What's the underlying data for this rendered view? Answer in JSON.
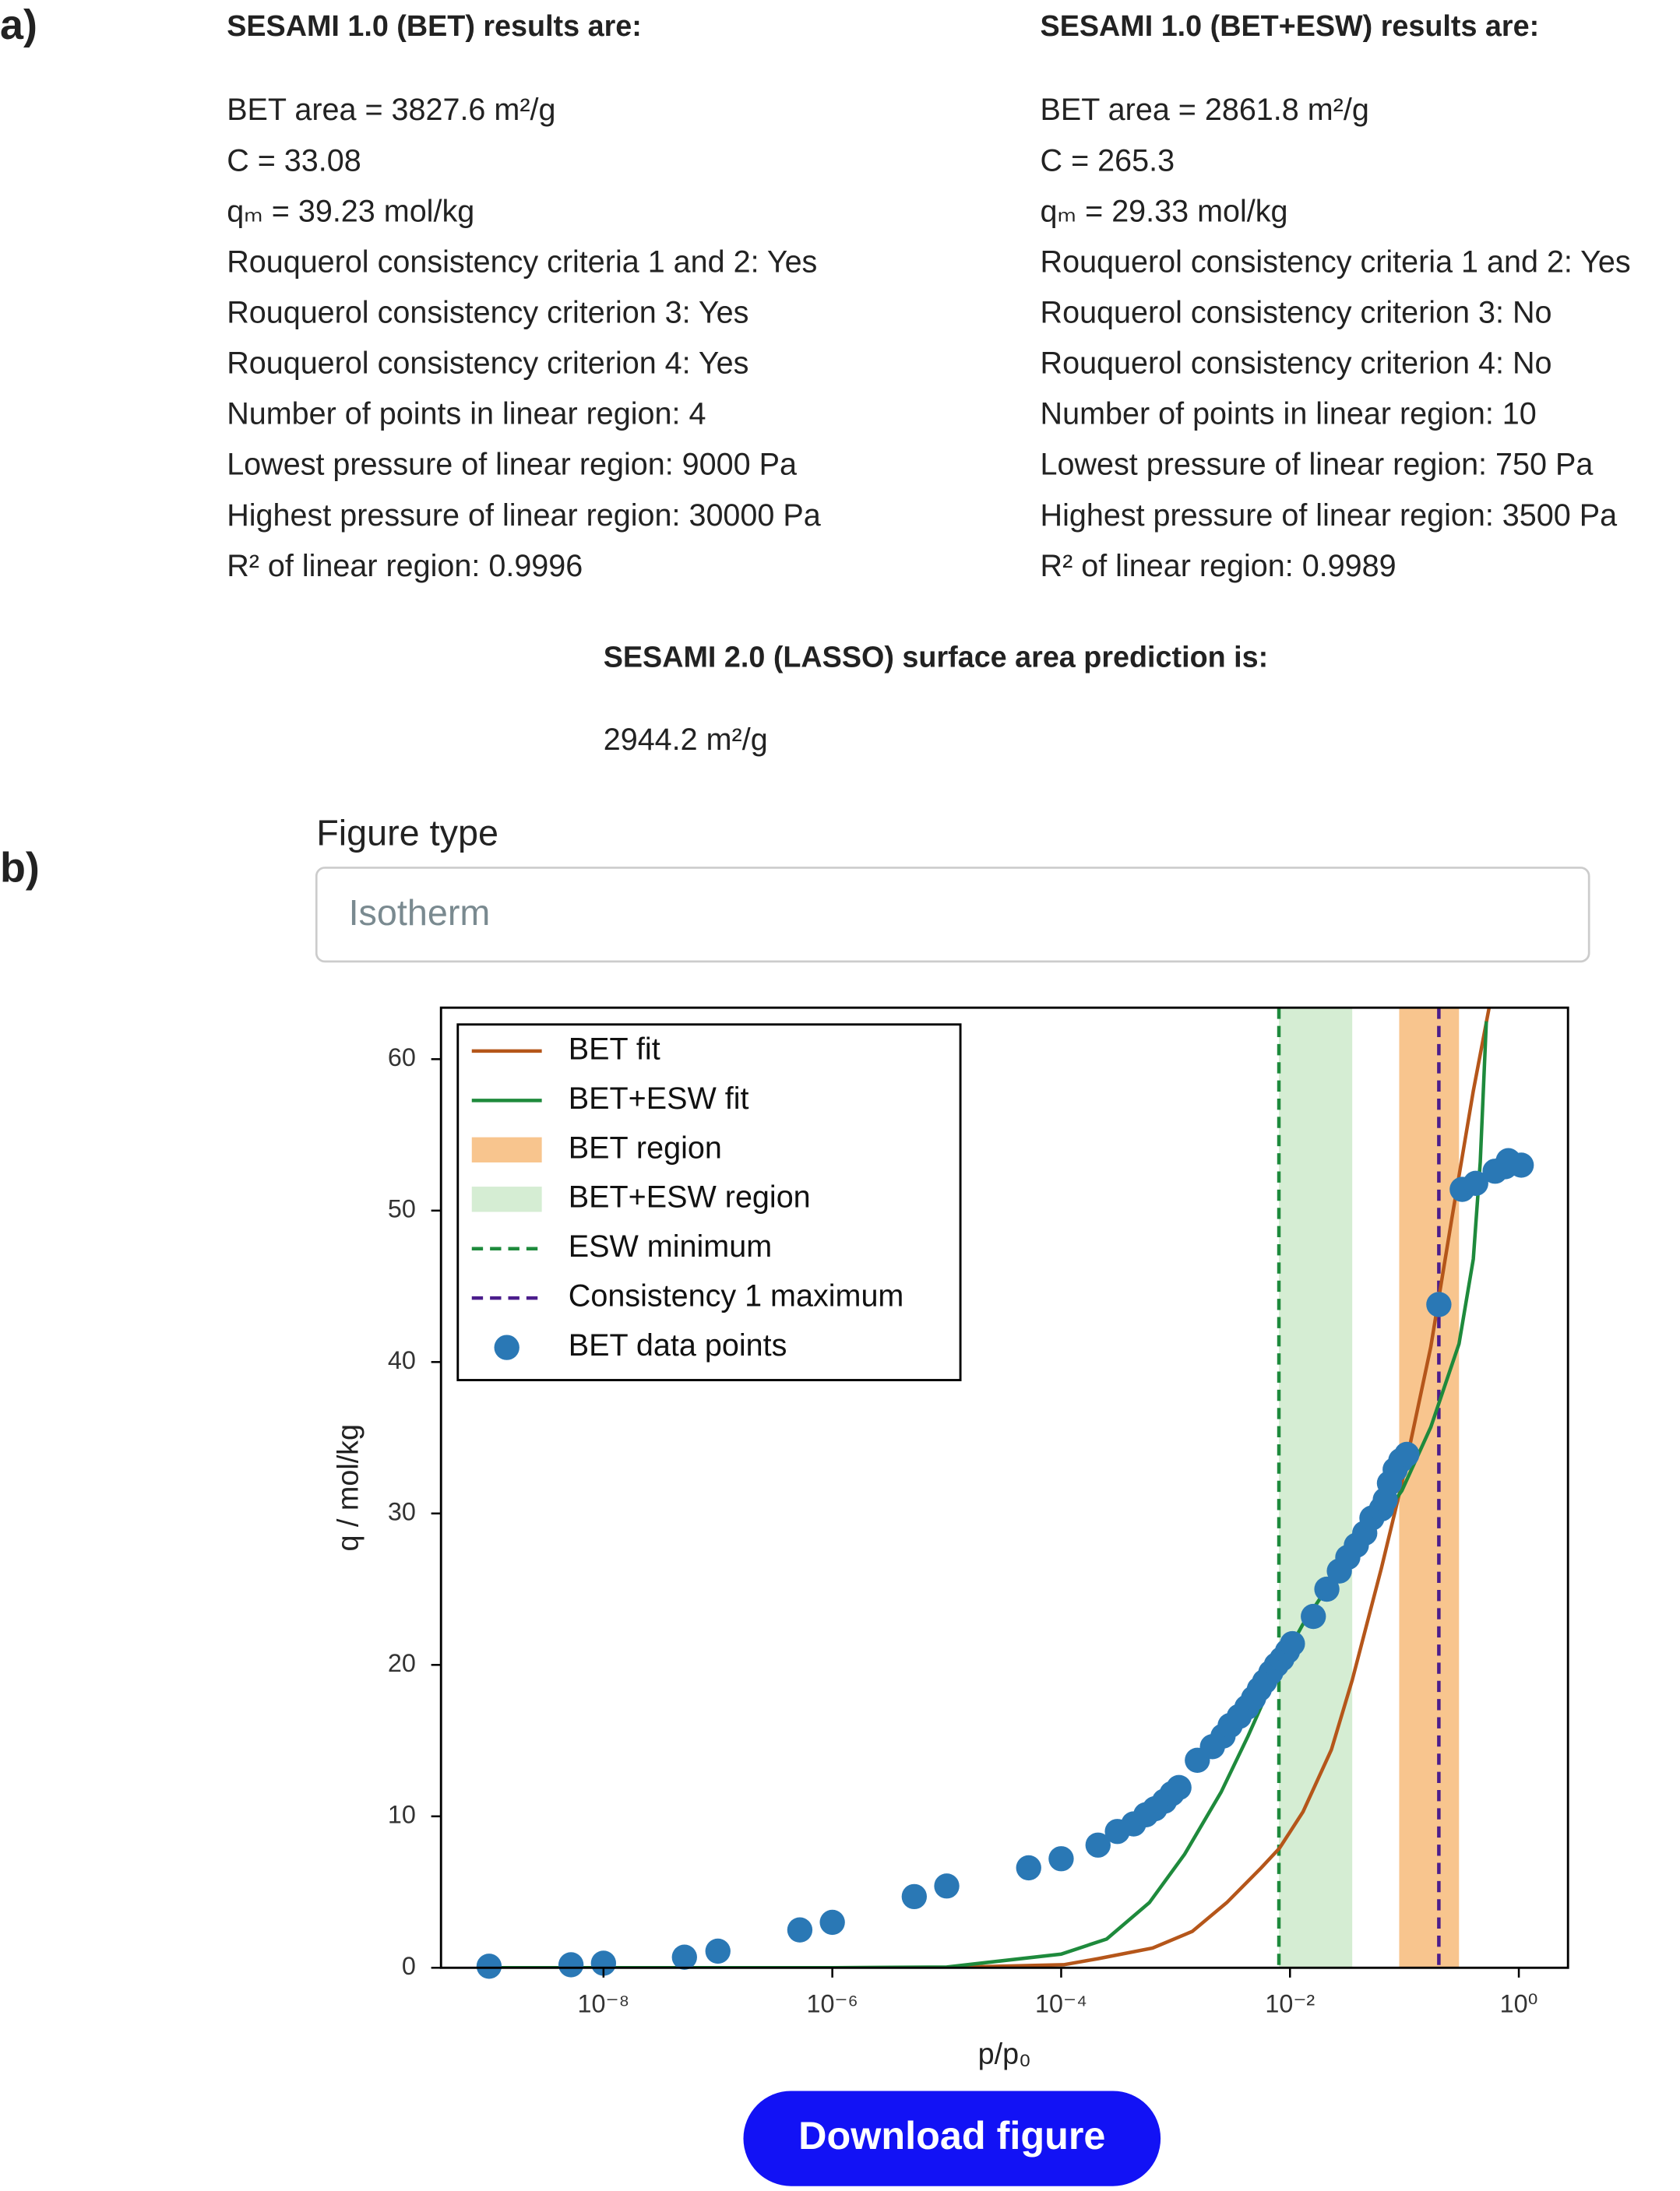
{
  "panel_labels": [
    "a)",
    "b)"
  ],
  "results": [
    {
      "title": "SESAMI 1.0 (BET) results are:",
      "lines": [
        "BET area = 3827.6 m²/g",
        "C = 33.08",
        "qₘ = 39.23 mol/kg",
        "Rouquerol consistency criteria 1 and 2: Yes",
        "Rouquerol consistency criterion 3: Yes",
        "Rouquerol consistency criterion 4: Yes",
        "Number of points in linear region: 4",
        "Lowest pressure of linear region: 9000 Pa",
        "Highest pressure of linear region: 30000 Pa",
        "R² of linear region: 0.9996"
      ]
    },
    {
      "title": "SESAMI 1.0 (BET+ESW) results are:",
      "lines": [
        "BET area = 2861.8 m²/g",
        "C = 265.3",
        "qₘ = 29.33 mol/kg",
        "Rouquerol consistency criteria 1 and 2: Yes",
        "Rouquerol consistency criterion 3: No",
        "Rouquerol consistency criterion 4: No",
        "Number of points in linear region: 10",
        "Lowest pressure of linear region: 750 Pa",
        "Highest pressure of linear region: 3500 Pa",
        "R² of linear region: 0.9989"
      ]
    }
  ],
  "lasso": {
    "title": "SESAMI 2.0 (LASSO) surface area prediction is:",
    "value": "2944.2 m²/g"
  },
  "figure_type": {
    "label": "Figure type",
    "selected": "Isotherm"
  },
  "button": "Download figure",
  "chart_data": {
    "type": "line",
    "xlabel": "p/p₀",
    "ylabel": "q / mol/kg",
    "xscale": "log",
    "xlim": [
      3.8e-10,
      2.69
    ],
    "ylim": [
      0,
      63.4
    ],
    "xticks": [
      {
        "value": 1e-08,
        "label": "10⁻⁸"
      },
      {
        "value": 1e-06,
        "label": "10⁻⁶"
      },
      {
        "value": 0.0001,
        "label": "10⁻⁴"
      },
      {
        "value": 0.01,
        "label": "10⁻²"
      },
      {
        "value": 1,
        "label": "10⁰"
      }
    ],
    "yticks": [
      0,
      10,
      20,
      30,
      40,
      50,
      60
    ],
    "legend": "upper left",
    "series": [
      {
        "name": "BET fit",
        "color": "#b5561a",
        "x": [
          1e-09,
          1e-06,
          1e-05,
          0.000105,
          0.00021,
          0.00063,
          0.0014,
          0.0028,
          0.0056,
          0.0081,
          0.013,
          0.023,
          0.035,
          0.063,
          0.095,
          0.17,
          0.26,
          0.4,
          0.55
        ],
        "values": [
          0,
          0,
          0.02,
          0.2,
          0.6,
          1.3,
          2.4,
          4.3,
          6.6,
          7.9,
          10.3,
          14.4,
          19,
          26.4,
          32,
          41,
          49.5,
          57.9,
          63.4
        ]
      },
      {
        "name": "BET+ESW fit",
        "color": "#1e8a3c",
        "x": [
          1e-09,
          1e-06,
          1e-05,
          0.0001,
          0.00025,
          0.00059,
          0.0012,
          0.0025,
          0.0043,
          0.0076,
          0.013,
          0.023,
          0.047,
          0.095,
          0.17,
          0.3,
          0.4,
          0.46,
          0.52
        ],
        "values": [
          0,
          0,
          0.05,
          0.9,
          1.9,
          4.3,
          7.5,
          11.6,
          15.3,
          19.5,
          22.7,
          25.5,
          28.3,
          31.5,
          35.7,
          41.2,
          46.8,
          53.2,
          62.5
        ]
      }
    ],
    "regions": [
      {
        "name": "BET region",
        "color": "#f8c58e",
        "from": 0.09,
        "to": 0.3
      },
      {
        "name": "BET+ESW region",
        "color": "#d5edd3",
        "from": 0.008,
        "to": 0.035
      }
    ],
    "vlines": [
      {
        "name": "ESW minimum",
        "color": "#1e8a3c",
        "style": "dashed",
        "x": 0.008
      },
      {
        "name": "Consistency 1 maximum",
        "color": "#4b1d8c",
        "style": "dashed",
        "x": 0.2
      }
    ],
    "points": {
      "name": "BET data points",
      "color": "#2a78b5",
      "x": [
        1e-09,
        5.2e-09,
        1e-08,
        5.1e-08,
        1e-07,
        5.2e-07,
        1e-06,
        5.2e-06,
        1e-05,
        5.2e-05,
        0.0001,
        0.00021,
        0.00031,
        0.00043,
        0.00055,
        0.00066,
        0.0008,
        0.00093,
        0.00107,
        0.00155,
        0.0021,
        0.0026,
        0.003,
        0.0036,
        0.0042,
        0.0048,
        0.0054,
        0.006,
        0.0068,
        0.0076,
        0.0085,
        0.0095,
        0.0105,
        0.016,
        0.021,
        0.027,
        0.032,
        0.038,
        0.045,
        0.052,
        0.063,
        0.068,
        0.074,
        0.083,
        0.093,
        0.105,
        0.2,
        0.32,
        0.42,
        0.62,
        0.76,
        0.81,
        1.05
      ],
      "values": [
        0.1,
        0.2,
        0.3,
        0.7,
        1.1,
        2.5,
        3.0,
        4.7,
        5.4,
        6.6,
        7.2,
        8.1,
        9.0,
        9.5,
        10.1,
        10.5,
        11.0,
        11.5,
        11.9,
        13.7,
        14.6,
        15.3,
        16.0,
        16.6,
        17.2,
        17.8,
        18.4,
        18.9,
        19.5,
        20.0,
        20.4,
        20.9,
        21.4,
        23.2,
        25.0,
        26.2,
        27.1,
        27.9,
        28.7,
        29.7,
        30.3,
        30.9,
        32.0,
        32.9,
        33.5,
        33.9,
        43.8,
        51.4,
        51.8,
        52.6,
        52.9,
        53.3,
        53.0
      ]
    }
  }
}
